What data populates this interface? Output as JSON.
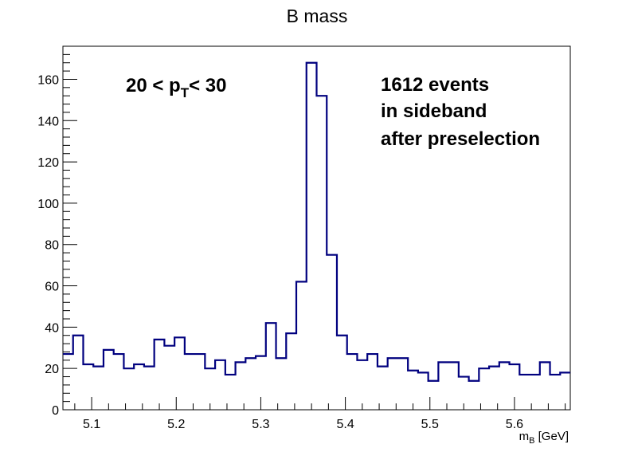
{
  "chart_data": {
    "type": "histogram",
    "title": "B mass",
    "xlabel_main": "m",
    "xlabel_sub": "B",
    "xlabel_unit": " [GeV]",
    "ylabel": "",
    "xlim": [
      5.066,
      5.666
    ],
    "ylim": [
      0,
      176
    ],
    "bin_width": 0.012,
    "bin_low_edges": [
      5.066,
      5.078,
      5.09,
      5.102,
      5.114,
      5.126,
      5.138,
      5.15,
      5.162,
      5.174,
      5.186,
      5.198,
      5.21,
      5.222,
      5.234,
      5.246,
      5.258,
      5.27,
      5.282,
      5.294,
      5.306,
      5.318,
      5.33,
      5.342,
      5.354,
      5.366,
      5.378,
      5.39,
      5.402,
      5.414,
      5.426,
      5.438,
      5.45,
      5.462,
      5.474,
      5.486,
      5.498,
      5.51,
      5.522,
      5.534,
      5.546,
      5.558,
      5.57,
      5.582,
      5.594,
      5.606,
      5.618,
      5.63,
      5.642,
      5.654
    ],
    "values": [
      27,
      36,
      22,
      21,
      29,
      27,
      20,
      22,
      21,
      34,
      31,
      35,
      27,
      27,
      20,
      24,
      17,
      23,
      25,
      26,
      42,
      25,
      37,
      62,
      168,
      152,
      75,
      36,
      27,
      24,
      27,
      21,
      25,
      25,
      19,
      18,
      14,
      23,
      23,
      16,
      14,
      20,
      21,
      23,
      22,
      17,
      17,
      23,
      17,
      18
    ],
    "x_ticks": [
      5.1,
      5.2,
      5.3,
      5.4,
      5.5,
      5.6
    ],
    "x_tick_labels": [
      "5.1",
      "5.2",
      "5.3",
      "5.4",
      "5.5",
      "5.6"
    ],
    "y_ticks": [
      0,
      20,
      40,
      60,
      80,
      100,
      120,
      140,
      160
    ],
    "y_tick_labels": [
      "0",
      "20",
      "40",
      "60",
      "80",
      "100",
      "120",
      "140",
      "160"
    ],
    "grid": false,
    "line_color": "#00007f",
    "annotations": {
      "pt_pre": "20 < p",
      "pt_sub": "T",
      "pt_post": "< 30",
      "events_line1": "1612 events",
      "events_line2": "in sideband",
      "events_line3": "after preselection"
    }
  }
}
